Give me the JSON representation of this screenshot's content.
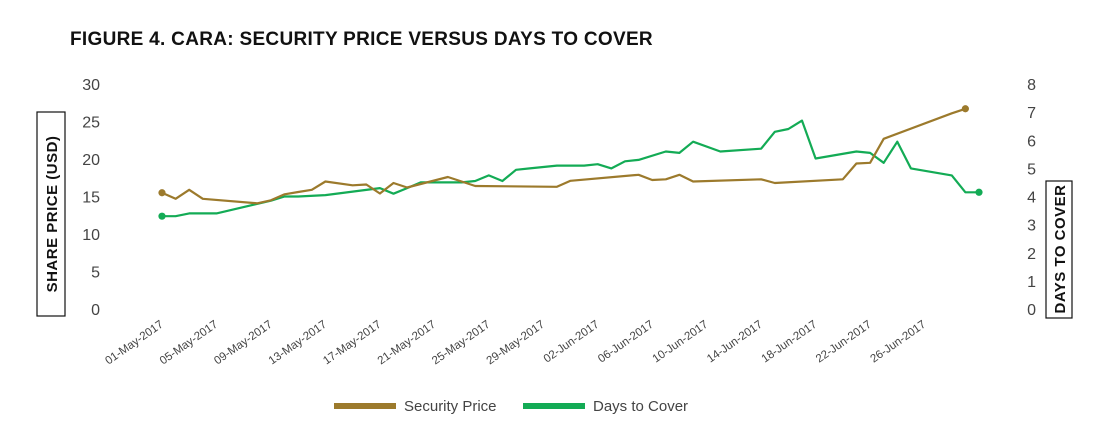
{
  "colors": {
    "price": "#9c7a2c",
    "cover": "#13ab55",
    "text": "#444444"
  },
  "chart_data": {
    "type": "line",
    "title": "FIGURE 4. CARA: SECURITY PRICE VERSUS DAYS TO COVER",
    "ylabel": "SHARE PRICE (USD)",
    "y2label": "DAYS TO COVER",
    "ylim": [
      0,
      30
    ],
    "y2lim": [
      0,
      8
    ],
    "yticks": [
      "0",
      "5",
      "10",
      "15",
      "20",
      "25",
      "30"
    ],
    "y2ticks": [
      "0",
      "1",
      "2",
      "3",
      "4",
      "5",
      "6",
      "7",
      "8"
    ],
    "xticks": [
      "01-May-2017",
      "05-May-2017",
      "09-May-2017",
      "13-May-2017",
      "17-May-2017",
      "21-May-2017",
      "25-May-2017",
      "29-May-2017",
      "02-Jun-2017",
      "06-Jun-2017",
      "10-Jun-2017",
      "14-Jun-2017",
      "18-Jun-2017",
      "22-Jun-2017",
      "26-Jun-2017"
    ],
    "grid": false,
    "legend_position": "bottom",
    "series": [
      {
        "name": "Security Price",
        "axis": "left",
        "points": [
          [
            "01-May-2017",
            15.5
          ],
          [
            "02-May-2017",
            14.7
          ],
          [
            "03-May-2017",
            15.9
          ],
          [
            "04-May-2017",
            14.7
          ],
          [
            "08-May-2017",
            14.1
          ],
          [
            "09-May-2017",
            14.5
          ],
          [
            "10-May-2017",
            15.3
          ],
          [
            "11-May-2017",
            15.6
          ],
          [
            "12-May-2017",
            15.9
          ],
          [
            "13-May-2017",
            17.0
          ],
          [
            "15-May-2017",
            16.5
          ],
          [
            "16-May-2017",
            16.6
          ],
          [
            "17-May-2017",
            15.4
          ],
          [
            "18-May-2017",
            16.8
          ],
          [
            "19-May-2017",
            16.2
          ],
          [
            "22-May-2017",
            17.6
          ],
          [
            "23-May-2017",
            17.0
          ],
          [
            "24-May-2017",
            16.4
          ],
          [
            "30-May-2017",
            16.3
          ],
          [
            "31-May-2017",
            17.1
          ],
          [
            "05-Jun-2017",
            17.9
          ],
          [
            "06-Jun-2017",
            17.2
          ],
          [
            "07-Jun-2017",
            17.3
          ],
          [
            "08-Jun-2017",
            17.9
          ],
          [
            "09-Jun-2017",
            17.0
          ],
          [
            "14-Jun-2017",
            17.3
          ],
          [
            "15-Jun-2017",
            16.8
          ],
          [
            "20-Jun-2017",
            17.3
          ],
          [
            "21-Jun-2017",
            19.4
          ],
          [
            "22-Jun-2017",
            19.5
          ],
          [
            "23-Jun-2017",
            22.7
          ],
          [
            "28-Jun-2017",
            26.1
          ],
          [
            "29-Jun-2017",
            26.7
          ]
        ]
      },
      {
        "name": "Days to Cover",
        "axis": "right",
        "points": [
          [
            "01-May-2017",
            3.3
          ],
          [
            "02-May-2017",
            3.3
          ],
          [
            "03-May-2017",
            3.4
          ],
          [
            "05-May-2017",
            3.4
          ],
          [
            "09-May-2017",
            3.85
          ],
          [
            "10-May-2017",
            4.0
          ],
          [
            "11-May-2017",
            4.0
          ],
          [
            "13-May-2017",
            4.05
          ],
          [
            "17-May-2017",
            4.3
          ],
          [
            "18-May-2017",
            4.1
          ],
          [
            "19-May-2017",
            4.3
          ],
          [
            "20-May-2017",
            4.5
          ],
          [
            "23-May-2017",
            4.5
          ],
          [
            "24-May-2017",
            4.55
          ],
          [
            "25-May-2017",
            4.75
          ],
          [
            "26-May-2017",
            4.55
          ],
          [
            "27-May-2017",
            4.95
          ],
          [
            "28-May-2017",
            5.0
          ],
          [
            "30-May-2017",
            5.1
          ],
          [
            "01-Jun-2017",
            5.1
          ],
          [
            "02-Jun-2017",
            5.15
          ],
          [
            "03-Jun-2017",
            5.0
          ],
          [
            "04-Jun-2017",
            5.25
          ],
          [
            "05-Jun-2017",
            5.3
          ],
          [
            "07-Jun-2017",
            5.6
          ],
          [
            "08-Jun-2017",
            5.55
          ],
          [
            "09-Jun-2017",
            5.95
          ],
          [
            "11-Jun-2017",
            5.6
          ],
          [
            "14-Jun-2017",
            5.7
          ],
          [
            "15-Jun-2017",
            6.3
          ],
          [
            "16-Jun-2017",
            6.4
          ],
          [
            "17-Jun-2017",
            6.7
          ],
          [
            "18-Jun-2017",
            5.35
          ],
          [
            "21-Jun-2017",
            5.6
          ],
          [
            "22-Jun-2017",
            5.55
          ],
          [
            "23-Jun-2017",
            5.2
          ],
          [
            "24-Jun-2017",
            5.95
          ],
          [
            "25-Jun-2017",
            5.0
          ],
          [
            "28-Jun-2017",
            4.75
          ],
          [
            "29-Jun-2017",
            4.15
          ],
          [
            "30-Jun-2017",
            4.15
          ]
        ]
      }
    ]
  }
}
